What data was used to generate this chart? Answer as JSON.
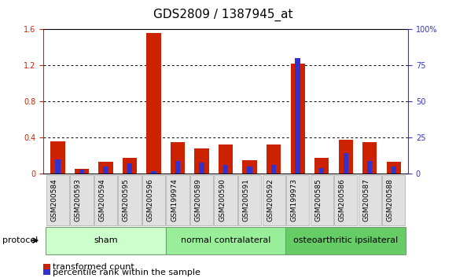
{
  "title": "GDS2809 / 1387945_at",
  "samples": [
    "GSM200584",
    "GSM200593",
    "GSM200594",
    "GSM200595",
    "GSM200596",
    "GSM199974",
    "GSM200589",
    "GSM200590",
    "GSM200591",
    "GSM200592",
    "GSM199973",
    "GSM200585",
    "GSM200586",
    "GSM200587",
    "GSM200588"
  ],
  "transformed_count": [
    0.36,
    0.05,
    0.13,
    0.18,
    1.56,
    0.35,
    0.28,
    0.32,
    0.15,
    0.32,
    1.22,
    0.18,
    0.38,
    0.35,
    0.13
  ],
  "percentile_rank": [
    10,
    3,
    5,
    7,
    2,
    9,
    8,
    6,
    5,
    6,
    80,
    4,
    14,
    9,
    5
  ],
  "groups": [
    {
      "label": "sham",
      "start": 0,
      "end": 5,
      "color": "#ccffcc"
    },
    {
      "label": "normal contralateral",
      "start": 5,
      "end": 10,
      "color": "#99ee99"
    },
    {
      "label": "osteoarthritic ipsilateral",
      "start": 10,
      "end": 15,
      "color": "#66cc66"
    }
  ],
  "left_ylim": [
    0,
    1.6
  ],
  "left_yticks": [
    0.0,
    0.4,
    0.8,
    1.2,
    1.6
  ],
  "right_ylim": [
    0,
    100
  ],
  "right_yticks": [
    0,
    25,
    50,
    75,
    100
  ],
  "bar_color_red": "#cc2200",
  "bar_color_blue": "#3333cc",
  "legend_red": "transformed count",
  "legend_blue": "percentile rank within the sample",
  "protocol_label": "protocol",
  "title_fontsize": 11,
  "tick_fontsize": 7,
  "label_fontsize": 8,
  "bar_width": 0.6,
  "background_color": "#ffffff",
  "plot_bg": "#ffffff",
  "group_label_fontsize": 8
}
